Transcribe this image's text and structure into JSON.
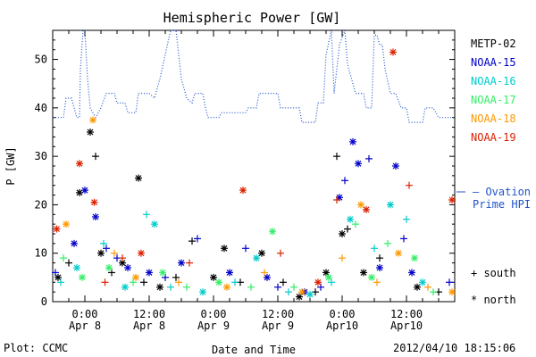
{
  "chart_data": {
    "type": "scatter",
    "title": "Hemispheric Power [GW]",
    "xlabel": "Date and Time",
    "ylabel": "P [GW]",
    "xlim": [
      "2012-04-07 18:00",
      "2012-04-10 21:00"
    ],
    "ylim": [
      0,
      56
    ],
    "grid": false,
    "legend_position": "right",
    "x_ticks": [
      {
        "time": "2012-04-08 00:00",
        "line1": "0:00",
        "line2": "Apr 8"
      },
      {
        "time": "2012-04-08 12:00",
        "line1": "12:00",
        "line2": "Apr 8"
      },
      {
        "time": "2012-04-09 00:00",
        "line1": "0:00",
        "line2": "Apr 9"
      },
      {
        "time": "2012-04-09 12:00",
        "line1": "12:00",
        "line2": "Apr 9"
      },
      {
        "time": "2012-04-10 00:00",
        "line1": "0:00",
        "line2": "Apr10"
      },
      {
        "time": "2012-04-10 12:00",
        "line1": "12:00",
        "line2": "Apr10"
      }
    ],
    "y_ticks": [
      0,
      10,
      20,
      30,
      40,
      50
    ],
    "series": [
      {
        "name": "METP-02",
        "color": "#000000",
        "points": [
          {
            "t": "2012-04-07 19:00",
            "v": 5,
            "m": "*"
          },
          {
            "t": "2012-04-07 21:00",
            "v": 8,
            "m": "+"
          },
          {
            "t": "2012-04-07 23:00",
            "v": 22.5,
            "m": "*"
          },
          {
            "t": "2012-04-08 01:00",
            "v": 35,
            "m": "*"
          },
          {
            "t": "2012-04-08 02:00",
            "v": 30,
            "m": "+"
          },
          {
            "t": "2012-04-08 03:00",
            "v": 10,
            "m": "*"
          },
          {
            "t": "2012-04-08 05:00",
            "v": 6,
            "m": "+"
          },
          {
            "t": "2012-04-08 07:00",
            "v": 8,
            "m": "*"
          },
          {
            "t": "2012-04-08 10:00",
            "v": 25.5,
            "m": "*"
          },
          {
            "t": "2012-04-08 11:00",
            "v": 4,
            "m": "+"
          },
          {
            "t": "2012-04-08 14:00",
            "v": 3,
            "m": "*"
          },
          {
            "t": "2012-04-08 17:00",
            "v": 5,
            "m": "+"
          },
          {
            "t": "2012-04-08 20:00",
            "v": 12.5,
            "m": "+"
          },
          {
            "t": "2012-04-09 00:00",
            "v": 5,
            "m": "*"
          },
          {
            "t": "2012-04-09 02:00",
            "v": 11,
            "m": "*"
          },
          {
            "t": "2012-04-09 05:00",
            "v": 4,
            "m": "+"
          },
          {
            "t": "2012-04-09 09:00",
            "v": 10,
            "m": "*"
          },
          {
            "t": "2012-04-09 13:00",
            "v": 4,
            "m": "+"
          },
          {
            "t": "2012-04-09 16:00",
            "v": 1,
            "m": "*"
          },
          {
            "t": "2012-04-09 19:00",
            "v": 2,
            "m": "+"
          },
          {
            "t": "2012-04-09 21:00",
            "v": 6,
            "m": "*"
          },
          {
            "t": "2012-04-09 23:00",
            "v": 30,
            "m": "+"
          },
          {
            "t": "2012-04-10 00:00",
            "v": 14,
            "m": "*"
          },
          {
            "t": "2012-04-10 01:00",
            "v": 15,
            "m": "+"
          },
          {
            "t": "2012-04-10 04:00",
            "v": 6,
            "m": "*"
          },
          {
            "t": "2012-04-10 07:00",
            "v": 9,
            "m": "+"
          },
          {
            "t": "2012-04-10 14:00",
            "v": 3,
            "m": "*"
          },
          {
            "t": "2012-04-10 18:00",
            "v": 2,
            "m": "+"
          }
        ]
      },
      {
        "name": "NOAA-15",
        "color": "#0000cc",
        "points": [
          {
            "t": "2012-04-07 18:30",
            "v": 6,
            "m": "+"
          },
          {
            "t": "2012-04-07 22:00",
            "v": 12,
            "m": "*"
          },
          {
            "t": "2012-04-08 00:00",
            "v": 23,
            "m": "*"
          },
          {
            "t": "2012-04-08 02:00",
            "v": 17.5,
            "m": "*"
          },
          {
            "t": "2012-04-08 04:00",
            "v": 11,
            "m": "+"
          },
          {
            "t": "2012-04-08 06:00",
            "v": 9,
            "m": "+"
          },
          {
            "t": "2012-04-08 08:00",
            "v": 7,
            "m": "*"
          },
          {
            "t": "2012-04-08 12:00",
            "v": 6,
            "m": "*"
          },
          {
            "t": "2012-04-08 15:00",
            "v": 5,
            "m": "+"
          },
          {
            "t": "2012-04-08 18:00",
            "v": 8,
            "m": "*"
          },
          {
            "t": "2012-04-08 21:00",
            "v": 13,
            "m": "+"
          },
          {
            "t": "2012-04-09 03:00",
            "v": 6,
            "m": "*"
          },
          {
            "t": "2012-04-09 06:00",
            "v": 11,
            "m": "+"
          },
          {
            "t": "2012-04-09 10:00",
            "v": 5,
            "m": "*"
          },
          {
            "t": "2012-04-09 12:00",
            "v": 3,
            "m": "+"
          },
          {
            "t": "2012-04-09 17:00",
            "v": 2,
            "m": "*"
          },
          {
            "t": "2012-04-09 20:00",
            "v": 3,
            "m": "+"
          },
          {
            "t": "2012-04-09 23:30",
            "v": 21.5,
            "m": "*"
          },
          {
            "t": "2012-04-10 00:30",
            "v": 25,
            "m": "+"
          },
          {
            "t": "2012-04-10 02:00",
            "v": 33,
            "m": "*"
          },
          {
            "t": "2012-04-10 03:00",
            "v": 28.5,
            "m": "*"
          },
          {
            "t": "2012-04-10 05:00",
            "v": 29.5,
            "m": "+"
          },
          {
            "t": "2012-04-10 07:00",
            "v": 7,
            "m": "*"
          },
          {
            "t": "2012-04-10 10:00",
            "v": 28,
            "m": "*"
          },
          {
            "t": "2012-04-10 11:30",
            "v": 13,
            "m": "+"
          },
          {
            "t": "2012-04-10 13:00",
            "v": 6,
            "m": "*"
          },
          {
            "t": "2012-04-10 20:00",
            "v": 4,
            "m": "+"
          }
        ]
      },
      {
        "name": "NOAA-16",
        "color": "#00cccc",
        "points": [
          {
            "t": "2012-04-07 19:30",
            "v": 4,
            "m": "+"
          },
          {
            "t": "2012-04-07 22:30",
            "v": 7,
            "m": "*"
          },
          {
            "t": "2012-04-08 03:30",
            "v": 12,
            "m": "+"
          },
          {
            "t": "2012-04-08 07:30",
            "v": 3,
            "m": "*"
          },
          {
            "t": "2012-04-08 11:30",
            "v": 18,
            "m": "+"
          },
          {
            "t": "2012-04-08 13:00",
            "v": 16,
            "m": "*"
          },
          {
            "t": "2012-04-08 16:00",
            "v": 3,
            "m": "+"
          },
          {
            "t": "2012-04-08 22:00",
            "v": 2,
            "m": "*"
          },
          {
            "t": "2012-04-09 04:00",
            "v": 4,
            "m": "+"
          },
          {
            "t": "2012-04-09 08:00",
            "v": 9,
            "m": "*"
          },
          {
            "t": "2012-04-09 14:00",
            "v": 2,
            "m": "+"
          },
          {
            "t": "2012-04-09 18:00",
            "v": 1.5,
            "m": "*"
          },
          {
            "t": "2012-04-09 22:00",
            "v": 4,
            "m": "+"
          },
          {
            "t": "2012-04-10 01:30",
            "v": 17,
            "m": "*"
          },
          {
            "t": "2012-04-10 06:00",
            "v": 11,
            "m": "+"
          },
          {
            "t": "2012-04-10 09:00",
            "v": 20,
            "m": "*"
          },
          {
            "t": "2012-04-10 12:00",
            "v": 17,
            "m": "+"
          },
          {
            "t": "2012-04-10 15:00",
            "v": 4,
            "m": "*"
          }
        ]
      },
      {
        "name": "NOAA-17",
        "color": "#33ee66",
        "points": [
          {
            "t": "2012-04-07 20:00",
            "v": 9,
            "m": "+"
          },
          {
            "t": "2012-04-07 23:30",
            "v": 5,
            "m": "*"
          },
          {
            "t": "2012-04-08 04:30",
            "v": 7,
            "m": "*"
          },
          {
            "t": "2012-04-08 09:00",
            "v": 4,
            "m": "+"
          },
          {
            "t": "2012-04-08 14:30",
            "v": 6,
            "m": "*"
          },
          {
            "t": "2012-04-08 19:00",
            "v": 3,
            "m": "+"
          },
          {
            "t": "2012-04-09 01:00",
            "v": 4,
            "m": "*"
          },
          {
            "t": "2012-04-09 07:00",
            "v": 3,
            "m": "+"
          },
          {
            "t": "2012-04-09 11:00",
            "v": 14.5,
            "m": "*"
          },
          {
            "t": "2012-04-09 15:00",
            "v": 3,
            "m": "+"
          },
          {
            "t": "2012-04-09 21:30",
            "v": 5,
            "m": "*"
          },
          {
            "t": "2012-04-10 02:30",
            "v": 16,
            "m": "+"
          },
          {
            "t": "2012-04-10 05:30",
            "v": 5,
            "m": "*"
          },
          {
            "t": "2012-04-10 08:30",
            "v": 12,
            "m": "+"
          },
          {
            "t": "2012-04-10 13:30",
            "v": 9,
            "m": "*"
          },
          {
            "t": "2012-04-10 17:00",
            "v": 2,
            "m": "+"
          }
        ]
      },
      {
        "name": "NOAA-18",
        "color": "#ff9900",
        "points": [
          {
            "t": "2012-04-07 20:30",
            "v": 16,
            "m": "*"
          },
          {
            "t": "2012-04-08 01:30",
            "v": 37.5,
            "m": "*"
          },
          {
            "t": "2012-04-08 05:30",
            "v": 10,
            "m": "+"
          },
          {
            "t": "2012-04-08 09:30",
            "v": 5,
            "m": "*"
          },
          {
            "t": "2012-04-08 17:30",
            "v": 4,
            "m": "+"
          },
          {
            "t": "2012-04-09 02:30",
            "v": 3,
            "m": "*"
          },
          {
            "t": "2012-04-09 09:30",
            "v": 6,
            "m": "+"
          },
          {
            "t": "2012-04-09 16:30",
            "v": 2,
            "m": "*"
          },
          {
            "t": "2012-04-10 00:00",
            "v": 9,
            "m": "+"
          },
          {
            "t": "2012-04-10 03:30",
            "v": 20,
            "m": "*"
          },
          {
            "t": "2012-04-10 06:30",
            "v": 4,
            "m": "+"
          },
          {
            "t": "2012-04-10 10:30",
            "v": 10,
            "m": "*"
          },
          {
            "t": "2012-04-10 16:00",
            "v": 3,
            "m": "+"
          },
          {
            "t": "2012-04-10 20:30",
            "v": 2,
            "m": "*"
          }
        ]
      },
      {
        "name": "NOAA-19",
        "color": "#dd2200",
        "points": [
          {
            "t": "2012-04-07 18:45",
            "v": 15,
            "m": "*"
          },
          {
            "t": "2012-04-07 23:00",
            "v": 28.5,
            "m": "*"
          },
          {
            "t": "2012-04-08 01:45",
            "v": 20.5,
            "m": "*"
          },
          {
            "t": "2012-04-08 03:45",
            "v": 4,
            "m": "+"
          },
          {
            "t": "2012-04-08 07:00",
            "v": 9,
            "m": "+"
          },
          {
            "t": "2012-04-08 10:30",
            "v": 10,
            "m": "*"
          },
          {
            "t": "2012-04-08 19:30",
            "v": 8,
            "m": "+"
          },
          {
            "t": "2012-04-09 05:30",
            "v": 23,
            "m": "*"
          },
          {
            "t": "2012-04-09 12:30",
            "v": 10,
            "m": "+"
          },
          {
            "t": "2012-04-09 19:30",
            "v": 4,
            "m": "*"
          },
          {
            "t": "2012-04-09 23:00",
            "v": 21,
            "m": "+"
          },
          {
            "t": "2012-04-10 04:30",
            "v": 19,
            "m": "*"
          },
          {
            "t": "2012-04-10 09:30",
            "v": 51.5,
            "m": "*"
          },
          {
            "t": "2012-04-10 12:30",
            "v": 24,
            "m": "+"
          },
          {
            "t": "2012-04-10 20:30",
            "v": 21,
            "m": "*"
          }
        ]
      }
    ],
    "ovation": {
      "label_line1": "— Ovation",
      "label_line2": "Prime HPI",
      "color": "#2255cc",
      "value": 23,
      "points": [
        {
          "t": "2012-04-07 18:00",
          "v": 38
        },
        {
          "t": "2012-04-07 20:00",
          "v": 38
        },
        {
          "t": "2012-04-07 20:30",
          "v": 42
        },
        {
          "t": "2012-04-07 21:30",
          "v": 42
        },
        {
          "t": "2012-04-07 22:00",
          "v": 40
        },
        {
          "t": "2012-04-07 22:30",
          "v": 38
        },
        {
          "t": "2012-04-07 23:00",
          "v": 38
        },
        {
          "t": "2012-04-07 23:10",
          "v": 48
        },
        {
          "t": "2012-04-07 23:40",
          "v": 56
        },
        {
          "t": "2012-04-08 00:00",
          "v": 56
        },
        {
          "t": "2012-04-08 00:30",
          "v": 46
        },
        {
          "t": "2012-04-08 01:00",
          "v": 40
        },
        {
          "t": "2012-04-08 02:00",
          "v": 38
        },
        {
          "t": "2012-04-08 03:00",
          "v": 40
        },
        {
          "t": "2012-04-08 04:00",
          "v": 43
        },
        {
          "t": "2012-04-08 05:30",
          "v": 43
        },
        {
          "t": "2012-04-08 06:00",
          "v": 41
        },
        {
          "t": "2012-04-08 07:30",
          "v": 41
        },
        {
          "t": "2012-04-08 08:00",
          "v": 39
        },
        {
          "t": "2012-04-08 09:30",
          "v": 39
        },
        {
          "t": "2012-04-08 10:00",
          "v": 43
        },
        {
          "t": "2012-04-08 12:00",
          "v": 43
        },
        {
          "t": "2012-04-08 13:00",
          "v": 42
        },
        {
          "t": "2012-04-08 14:00",
          "v": 46
        },
        {
          "t": "2012-04-08 16:00",
          "v": 56
        },
        {
          "t": "2012-04-08 17:00",
          "v": 56
        },
        {
          "t": "2012-04-08 18:00",
          "v": 46
        },
        {
          "t": "2012-04-08 19:00",
          "v": 42
        },
        {
          "t": "2012-04-08 20:00",
          "v": 41
        },
        {
          "t": "2012-04-08 20:30",
          "v": 43
        },
        {
          "t": "2012-04-08 22:00",
          "v": 43
        },
        {
          "t": "2012-04-08 22:30",
          "v": 40
        },
        {
          "t": "2012-04-08 23:00",
          "v": 38
        },
        {
          "t": "2012-04-09 01:00",
          "v": 38
        },
        {
          "t": "2012-04-09 01:30",
          "v": 39
        },
        {
          "t": "2012-04-09 06:00",
          "v": 39
        },
        {
          "t": "2012-04-09 06:30",
          "v": 40
        },
        {
          "t": "2012-04-09 08:00",
          "v": 40
        },
        {
          "t": "2012-04-09 08:30",
          "v": 43
        },
        {
          "t": "2012-04-09 12:00",
          "v": 43
        },
        {
          "t": "2012-04-09 12:30",
          "v": 40
        },
        {
          "t": "2012-04-09 16:00",
          "v": 40
        },
        {
          "t": "2012-04-09 16:30",
          "v": 37
        },
        {
          "t": "2012-04-09 19:00",
          "v": 37
        },
        {
          "t": "2012-04-09 19:30",
          "v": 41
        },
        {
          "t": "2012-04-09 20:30",
          "v": 41
        },
        {
          "t": "2012-04-09 21:00",
          "v": 51
        },
        {
          "t": "2012-04-09 22:00",
          "v": 56
        },
        {
          "t": "2012-04-09 22:30",
          "v": 43
        },
        {
          "t": "2012-04-09 23:30",
          "v": 53
        },
        {
          "t": "2012-04-10 00:30",
          "v": 56
        },
        {
          "t": "2012-04-10 01:00",
          "v": 49
        },
        {
          "t": "2012-04-10 02:30",
          "v": 43
        },
        {
          "t": "2012-04-10 04:00",
          "v": 43
        },
        {
          "t": "2012-04-10 04:30",
          "v": 40
        },
        {
          "t": "2012-04-10 05:30",
          "v": 40
        },
        {
          "t": "2012-04-10 06:00",
          "v": 55
        },
        {
          "t": "2012-04-10 06:30",
          "v": 55
        },
        {
          "t": "2012-04-10 07:00",
          "v": 53
        },
        {
          "t": "2012-04-10 07:30",
          "v": 53
        },
        {
          "t": "2012-04-10 08:00",
          "v": 48
        },
        {
          "t": "2012-04-10 09:00",
          "v": 43
        },
        {
          "t": "2012-04-10 10:00",
          "v": 43
        },
        {
          "t": "2012-04-10 11:00",
          "v": 40
        },
        {
          "t": "2012-04-10 12:00",
          "v": 40
        },
        {
          "t": "2012-04-10 12:30",
          "v": 37
        },
        {
          "t": "2012-04-10 15:00",
          "v": 37
        },
        {
          "t": "2012-04-10 15:30",
          "v": 40
        },
        {
          "t": "2012-04-10 17:00",
          "v": 40
        },
        {
          "t": "2012-04-10 18:00",
          "v": 38
        },
        {
          "t": "2012-04-10 21:00",
          "v": 38
        }
      ]
    },
    "marker_legend": [
      {
        "symbol": "+",
        "label": "south"
      },
      {
        "symbol": "*",
        "label": "north"
      }
    ]
  },
  "footer": {
    "left": "Plot: CCMC",
    "timestamp": "2012/04/10 18:15:06"
  }
}
